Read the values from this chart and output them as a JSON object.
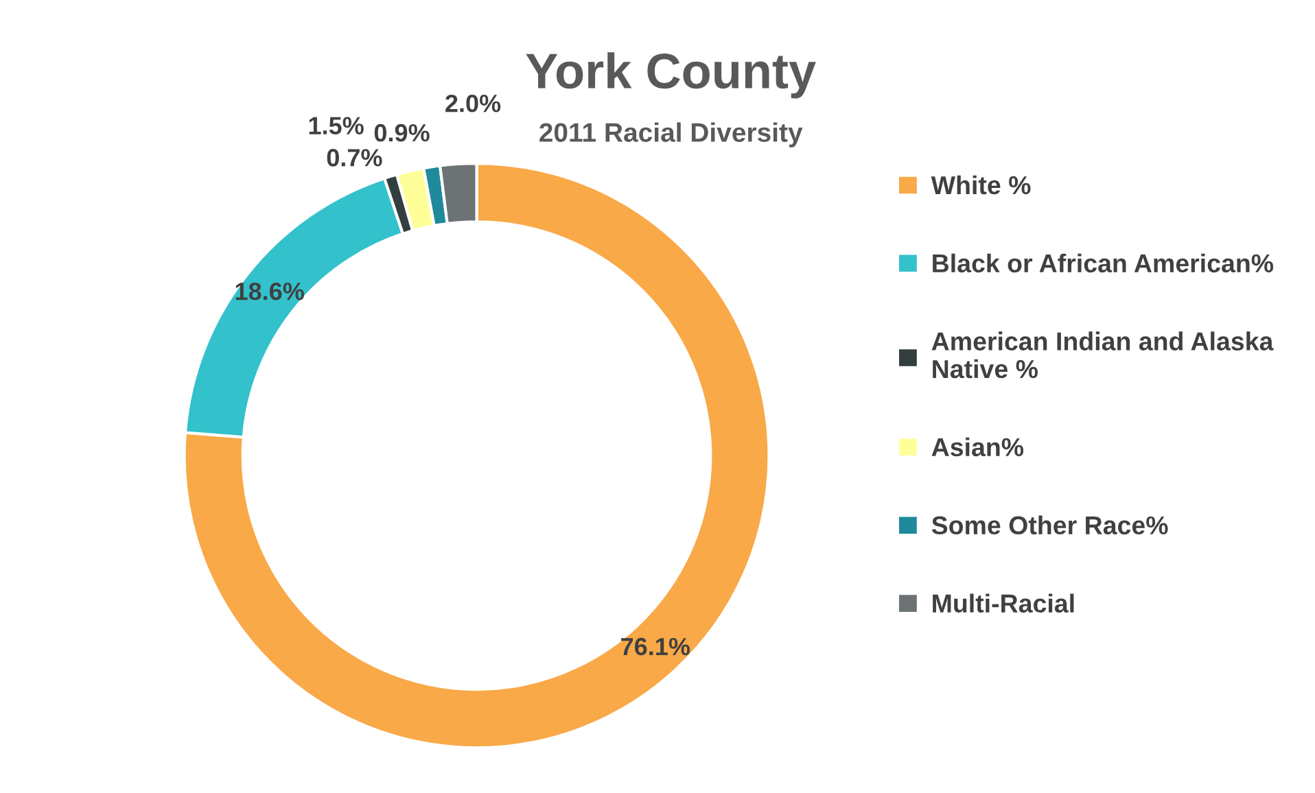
{
  "chart_data": {
    "type": "donut",
    "title": "York County",
    "subtitle": "2011 Racial Diversity",
    "categories": [
      "White %",
      "Black or African American%",
      "American Indian and Alaska Native %",
      "Asian%",
      "Some Other Race%",
      "Multi-Racial"
    ],
    "values": [
      76.1,
      18.6,
      0.7,
      1.5,
      0.9,
      2.0
    ],
    "colors": [
      "#f9a947",
      "#33c1cc",
      "#333f3f",
      "#ffff99",
      "#1f8a9b",
      "#6d7275"
    ],
    "value_labels": [
      "76.1%",
      "18.6%",
      "0.7%",
      "1.5%",
      "0.9%",
      "2.0%"
    ],
    "legend": "right"
  }
}
